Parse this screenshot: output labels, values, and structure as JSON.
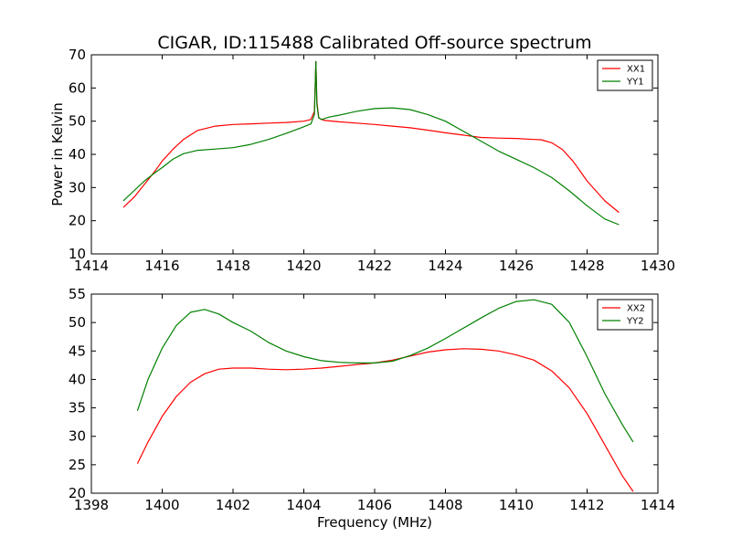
{
  "figure": {
    "title": "CIGAR, ID:115488 Calibrated Off-source spectrum"
  },
  "chart_data": [
    {
      "type": "line",
      "title": "CIGAR, ID:115488 Calibrated Off-source spectrum",
      "xlabel": "",
      "ylabel": "Power in Kelvin",
      "xlim": [
        1414,
        1430
      ],
      "ylim": [
        10,
        70
      ],
      "x_ticks": [
        1414,
        1416,
        1418,
        1420,
        1422,
        1424,
        1426,
        1428,
        1430
      ],
      "y_ticks": [
        10,
        20,
        30,
        40,
        50,
        60,
        70
      ],
      "legend_position": "top-right",
      "grid": false,
      "series": [
        {
          "name": "XX1",
          "color": "#ff0000",
          "x": [
            1414.9,
            1415.2,
            1415.5,
            1415.8,
            1416.0,
            1416.3,
            1416.6,
            1417.0,
            1417.5,
            1418.0,
            1418.5,
            1419.0,
            1419.5,
            1420.0,
            1420.2,
            1420.3,
            1420.34,
            1420.37,
            1420.42,
            1420.5,
            1420.6,
            1421.0,
            1421.5,
            1422.0,
            1422.5,
            1423.0,
            1423.5,
            1424.0,
            1424.5,
            1425.0,
            1425.5,
            1426.0,
            1426.5,
            1426.7,
            1427.0,
            1427.3,
            1427.6,
            1428.0,
            1428.5,
            1428.9
          ],
          "y": [
            24,
            27,
            31,
            35,
            38,
            41.5,
            44.5,
            47.2,
            48.5,
            49,
            49.2,
            49.4,
            49.6,
            50,
            50.5,
            53,
            68,
            56,
            51,
            50.5,
            50.2,
            49.8,
            49.4,
            49,
            48.5,
            48,
            47.3,
            46.5,
            45.8,
            45.1,
            44.9,
            44.8,
            44.5,
            44.4,
            43.5,
            41.5,
            38,
            32,
            26,
            22.5
          ]
        },
        {
          "name": "YY1",
          "color": "#008000",
          "x": [
            1414.9,
            1415.2,
            1415.5,
            1415.8,
            1416.0,
            1416.3,
            1416.6,
            1417.0,
            1417.5,
            1418.0,
            1418.5,
            1419.0,
            1419.5,
            1420.0,
            1420.2,
            1420.3,
            1420.34,
            1420.37,
            1420.42,
            1420.5,
            1420.7,
            1421.0,
            1421.5,
            1422.0,
            1422.5,
            1423.0,
            1423.5,
            1424.0,
            1424.5,
            1425.0,
            1425.5,
            1426.0,
            1426.5,
            1427.0,
            1427.5,
            1428.0,
            1428.5,
            1428.9
          ],
          "y": [
            26,
            29,
            32,
            34.5,
            36,
            38.5,
            40.2,
            41.2,
            41.6,
            42,
            43,
            44.5,
            46.3,
            48.3,
            49.2,
            52,
            68,
            55,
            51,
            50.5,
            51.2,
            51.8,
            53,
            53.8,
            54,
            53.5,
            52,
            50,
            47,
            44,
            41,
            38.5,
            36,
            33,
            29,
            24.5,
            20.5,
            18.8
          ]
        }
      ]
    },
    {
      "type": "line",
      "title": "",
      "xlabel": "Frequency (MHz)",
      "ylabel": "",
      "xlim": [
        1398,
        1414
      ],
      "ylim": [
        20,
        55
      ],
      "x_ticks": [
        1398,
        1400,
        1402,
        1404,
        1406,
        1408,
        1410,
        1412,
        1414
      ],
      "y_ticks": [
        20,
        25,
        30,
        35,
        40,
        45,
        50,
        55
      ],
      "legend_position": "top-right",
      "grid": false,
      "series": [
        {
          "name": "XX2",
          "color": "#ff0000",
          "x": [
            1399.3,
            1399.6,
            1400.0,
            1400.4,
            1400.8,
            1401.2,
            1401.6,
            1402.0,
            1402.5,
            1403.0,
            1403.5,
            1404.0,
            1404.5,
            1405.0,
            1405.5,
            1406.0,
            1406.5,
            1407.0,
            1407.5,
            1408.0,
            1408.5,
            1409.0,
            1409.5,
            1410.0,
            1410.5,
            1411.0,
            1411.5,
            1412.0,
            1412.5,
            1413.0,
            1413.3
          ],
          "y": [
            25.2,
            29,
            33.5,
            37,
            39.5,
            41,
            41.8,
            42,
            42,
            41.8,
            41.7,
            41.8,
            42,
            42.3,
            42.6,
            42.9,
            43.4,
            44.1,
            44.8,
            45.2,
            45.4,
            45.3,
            45,
            44.3,
            43.4,
            41.5,
            38.5,
            34,
            28.5,
            23,
            20.3
          ]
        },
        {
          "name": "YY2",
          "color": "#008000",
          "x": [
            1399.3,
            1399.6,
            1400.0,
            1400.4,
            1400.8,
            1401.2,
            1401.6,
            1402.0,
            1402.5,
            1403.0,
            1403.5,
            1404.0,
            1404.5,
            1405.0,
            1405.5,
            1406.0,
            1406.5,
            1407.0,
            1407.5,
            1408.0,
            1408.5,
            1409.0,
            1409.5,
            1410.0,
            1410.5,
            1411.0,
            1411.5,
            1412.0,
            1412.5,
            1413.0,
            1413.3
          ],
          "y": [
            34.5,
            40,
            45.5,
            49.5,
            51.8,
            52.3,
            51.5,
            50,
            48.5,
            46.5,
            45,
            44,
            43.3,
            43,
            42.9,
            42.9,
            43.2,
            44.2,
            45.5,
            47.2,
            49,
            50.8,
            52.5,
            53.7,
            54,
            53.2,
            50,
            44,
            37.5,
            32,
            29
          ]
        }
      ]
    }
  ]
}
